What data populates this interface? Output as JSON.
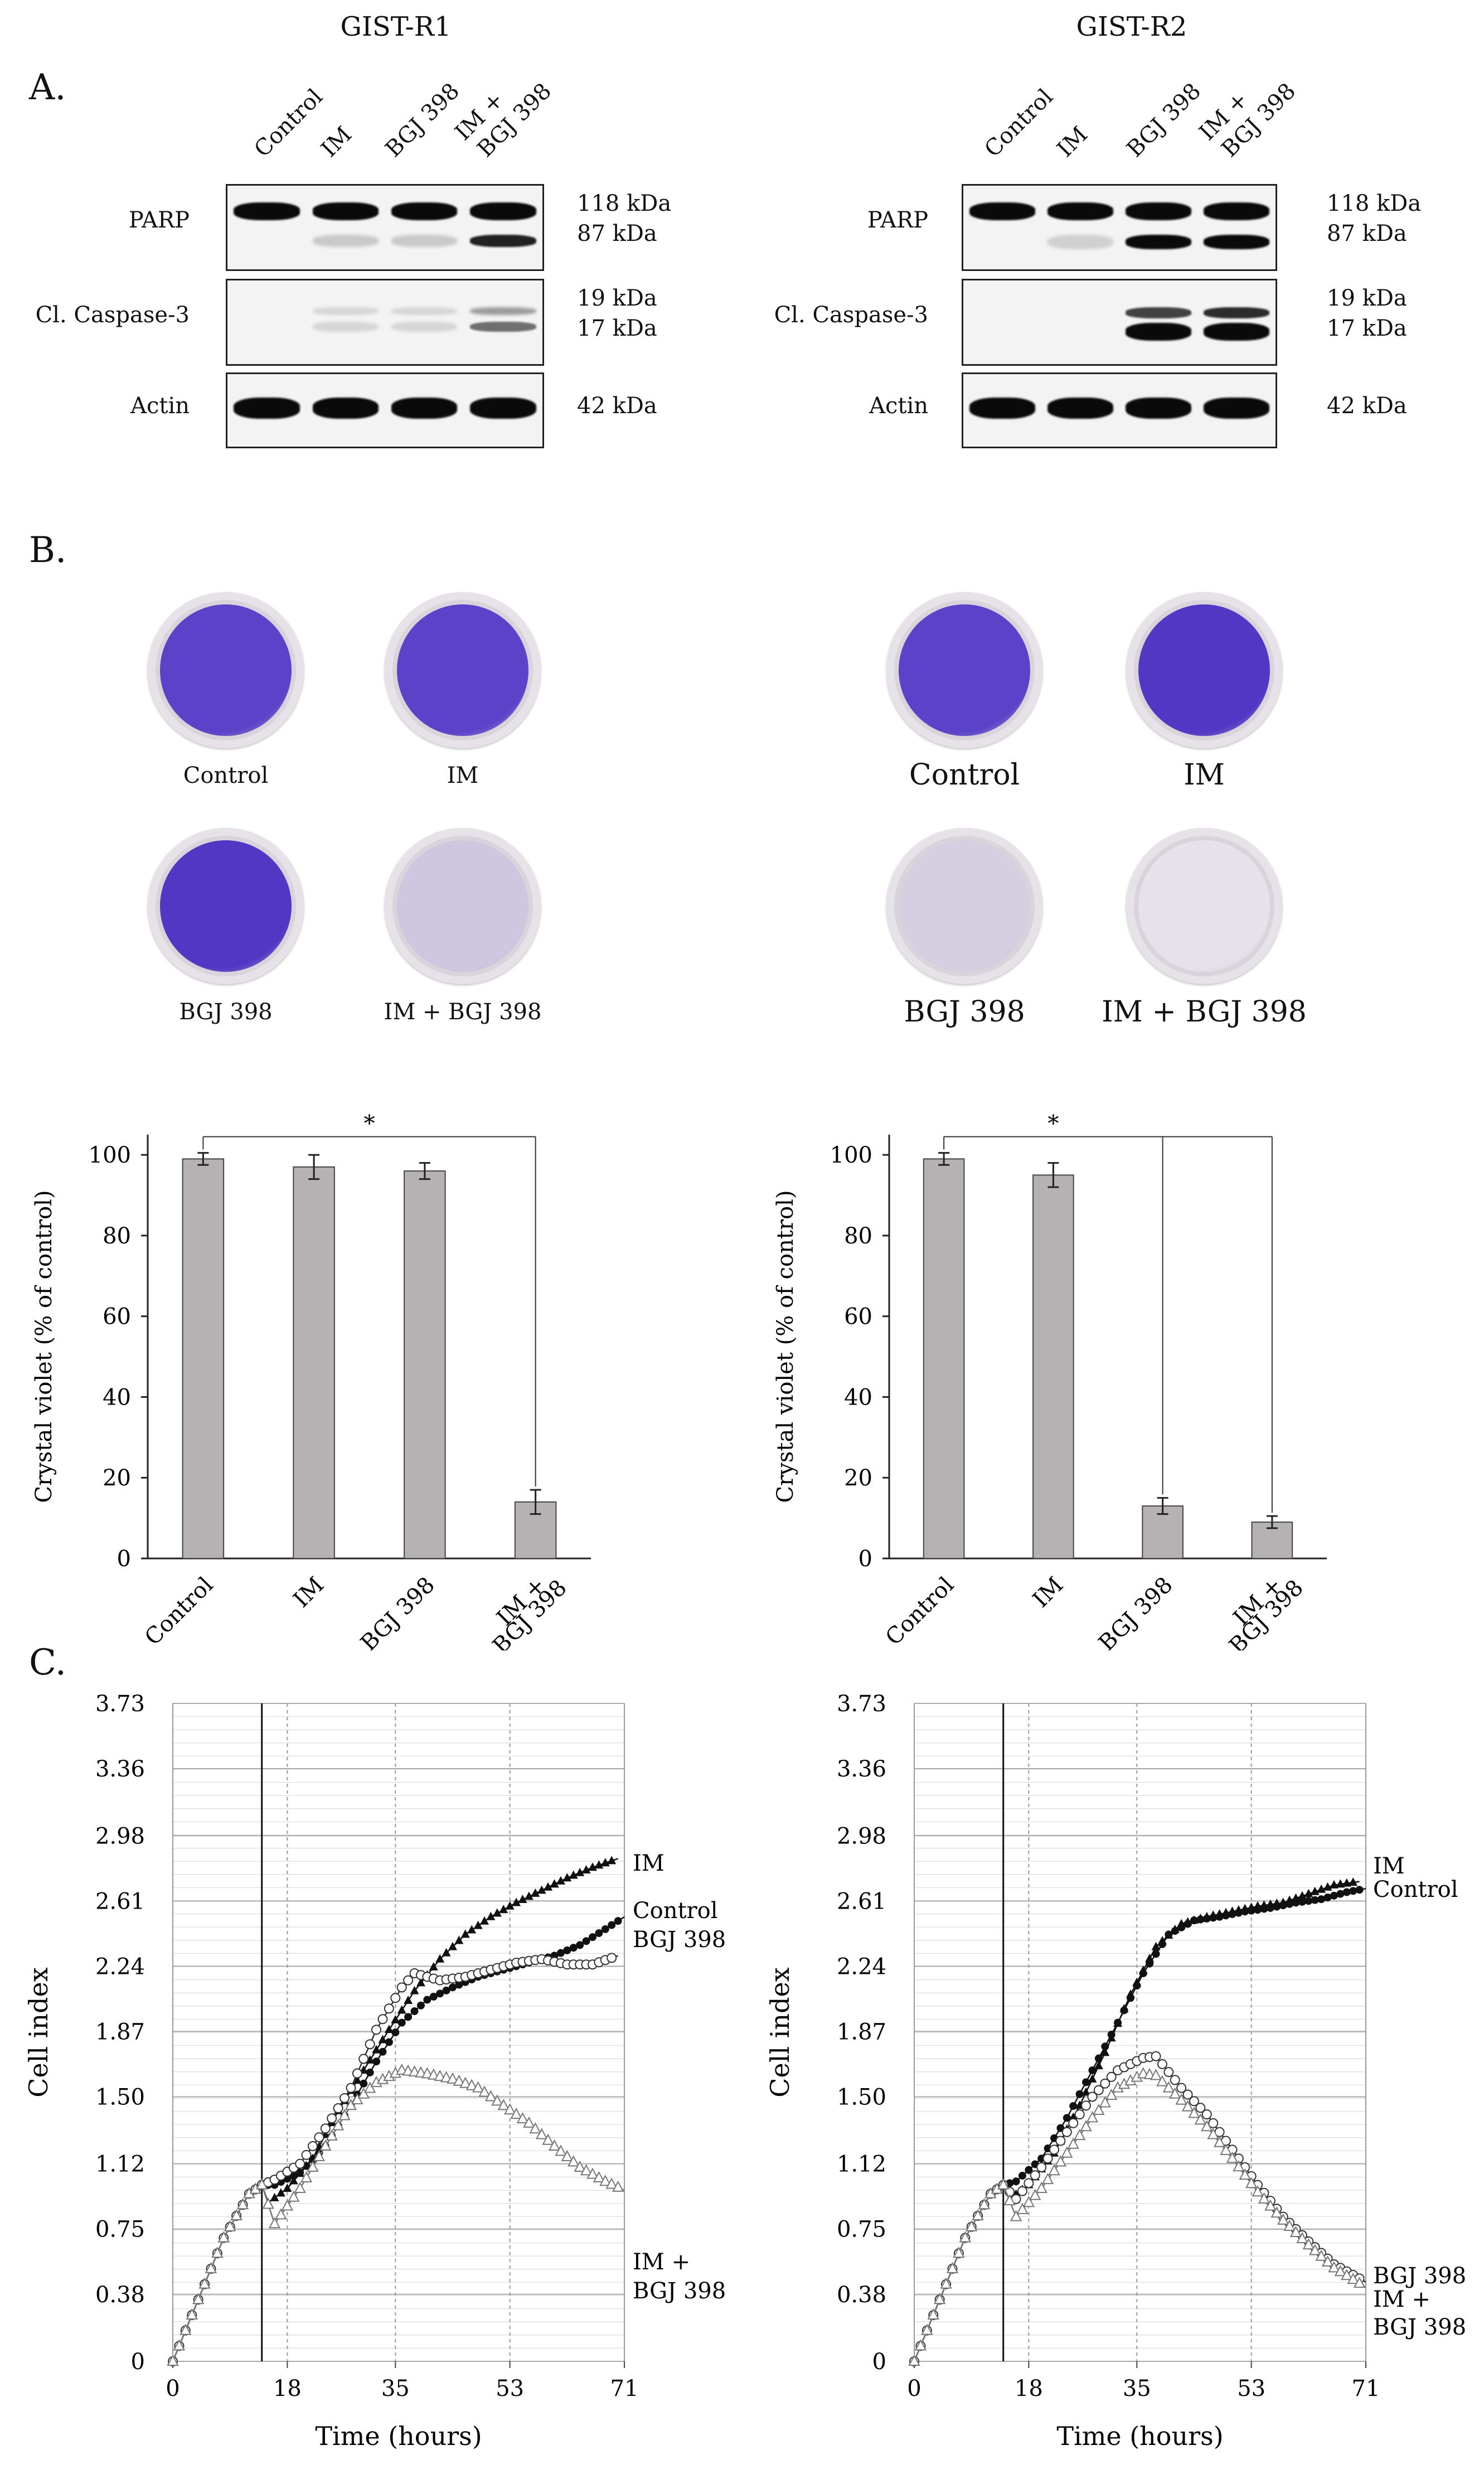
{
  "panelA": {
    "letter": "A.",
    "columns": [
      {
        "title": "GIST-R1",
        "lanes": [
          "Control",
          "IM",
          "BGJ 398",
          "IM +",
          "BGJ 398"
        ],
        "rows": [
          {
            "label": "PARP",
            "kda": [
              "118 kDa",
              "87 kDa"
            ]
          },
          {
            "label": "Cl. Caspase-3",
            "kda": [
              "19 kDa",
              "17 kDa"
            ]
          },
          {
            "label": "Actin",
            "kda": [
              "42 kDa"
            ]
          }
        ]
      },
      {
        "title": "GIST-R2",
        "lanes": [
          "Control",
          "IM",
          "BGJ 398",
          "IM +",
          "BGJ 398"
        ],
        "rows": [
          {
            "label": "PARP",
            "kda": [
              "118 kDa",
              "87 kDa"
            ]
          },
          {
            "label": "Cl. Caspase-3",
            "kda": [
              "19 kDa",
              "17 kDa"
            ]
          },
          {
            "label": "Actin",
            "kda": [
              "42 kDa"
            ]
          }
        ]
      }
    ],
    "blot_intensity": {
      "r1": {
        "parp118": [
          1,
          1,
          1,
          1
        ],
        "parp87": [
          0,
          0.15,
          0.15,
          0.9
        ],
        "casp19": [
          0,
          0.1,
          0.1,
          0.35
        ],
        "casp17": [
          0,
          0.1,
          0.1,
          0.55
        ],
        "actin": [
          1,
          1,
          1,
          1
        ]
      },
      "r2": {
        "parp118": [
          1,
          1,
          1,
          1
        ],
        "parp87": [
          0,
          0.12,
          1,
          1
        ],
        "casp19": [
          0,
          0,
          0.75,
          0.85
        ],
        "casp17": [
          0,
          0,
          1,
          1
        ],
        "actin": [
          1,
          1,
          1,
          1
        ]
      }
    }
  },
  "panelB": {
    "letter": "B.",
    "dishes": {
      "r1": [
        "Control",
        "IM",
        "BGJ 398",
        "IM + BGJ 398"
      ],
      "r2": [
        "Control",
        "IM",
        "BGJ 398",
        "IM + BGJ 398"
      ]
    },
    "stain_colors": {
      "r1": [
        "#5a43c8",
        "#5a43c8",
        "#5237c4",
        "#cfc6e0"
      ],
      "r2": [
        "#5a43c8",
        "#5237c4",
        "#d6cfe2",
        "#e6e2ea"
      ]
    },
    "significance_label": "*"
  },
  "chart_data": [
    {
      "type": "bar",
      "title": "",
      "ylabel": "Crystal violet (% of control)",
      "xlabel": "",
      "categories": [
        "Control",
        "IM",
        "BGJ 398",
        "IM + BGJ 398"
      ],
      "category_lines": [
        [
          "Control"
        ],
        [
          "IM"
        ],
        [
          "BGJ 398"
        ],
        [
          "IM +",
          "BGJ 398"
        ]
      ],
      "values": [
        99,
        97,
        96,
        14
      ],
      "errors": [
        1.5,
        3,
        2,
        3
      ],
      "yticks": [
        0,
        20,
        40,
        60,
        80,
        100
      ],
      "ylim": [
        0,
        105
      ],
      "bar_color": "#b6b1b3",
      "significance": {
        "label": "*",
        "from": 0,
        "to": [
          3
        ]
      }
    },
    {
      "type": "bar",
      "title": "",
      "ylabel": "Crystal violet (% of control)",
      "xlabel": "",
      "categories": [
        "Control",
        "IM",
        "BGJ 398",
        "IM + BGJ 398"
      ],
      "category_lines": [
        [
          "Control"
        ],
        [
          "IM"
        ],
        [
          "BGJ 398"
        ],
        [
          "IM +",
          "BGJ 398"
        ]
      ],
      "values": [
        99,
        95,
        13,
        9
      ],
      "errors": [
        1.5,
        3,
        2,
        1.5
      ],
      "yticks": [
        0,
        20,
        40,
        60,
        80,
        100
      ],
      "ylim": [
        0,
        105
      ],
      "bar_color": "#b6b1b3",
      "significance": {
        "label": "*",
        "from": 0,
        "to": [
          2,
          3
        ]
      }
    },
    {
      "type": "line",
      "title": "",
      "panel_letter": "C.",
      "xlabel": "Time (hours)",
      "ylabel": "Cell index",
      "xticks": [
        0,
        18,
        35,
        53,
        71
      ],
      "yticks": [
        0,
        0.38,
        0.75,
        1.12,
        1.5,
        1.87,
        2.24,
        2.61,
        2.98,
        3.36,
        3.73
      ],
      "ytick_labels": [
        "0",
        "0.38",
        "0.75",
        "1.12",
        "1.50",
        "1.87",
        "2.24",
        "2.61",
        "2.98",
        "3.36",
        "3.73"
      ],
      "xlim": [
        0,
        71
      ],
      "ylim": [
        0,
        3.73
      ],
      "treatment_time": 14,
      "series": [
        {
          "name": "IM",
          "marker": "filled-triangle",
          "points": [
            [
              0,
              0
            ],
            [
              4,
              0.35
            ],
            [
              8,
              0.7
            ],
            [
              12,
              0.95
            ],
            [
              14,
              1.0
            ],
            [
              15,
              0.9
            ],
            [
              18,
              0.98
            ],
            [
              22,
              1.15
            ],
            [
              26,
              1.42
            ],
            [
              30,
              1.65
            ],
            [
              34,
              1.88
            ],
            [
              38,
              2.1
            ],
            [
              42,
              2.28
            ],
            [
              46,
              2.42
            ],
            [
              50,
              2.52
            ],
            [
              54,
              2.6
            ],
            [
              58,
              2.67
            ],
            [
              62,
              2.74
            ],
            [
              66,
              2.8
            ],
            [
              70,
              2.85
            ]
          ]
        },
        {
          "name": "Control",
          "marker": "filled-circle",
          "points": [
            [
              0,
              0
            ],
            [
              4,
              0.35
            ],
            [
              8,
              0.7
            ],
            [
              12,
              0.95
            ],
            [
              14,
              1.0
            ],
            [
              16,
              1.0
            ],
            [
              20,
              1.07
            ],
            [
              24,
              1.22
            ],
            [
              28,
              1.45
            ],
            [
              32,
              1.7
            ],
            [
              36,
              1.92
            ],
            [
              40,
              2.05
            ],
            [
              44,
              2.12
            ],
            [
              48,
              2.18
            ],
            [
              52,
              2.22
            ],
            [
              56,
              2.26
            ],
            [
              60,
              2.3
            ],
            [
              64,
              2.36
            ],
            [
              68,
              2.45
            ],
            [
              71,
              2.52
            ]
          ]
        },
        {
          "name": "BGJ 398",
          "marker": "open-circle",
          "points": [
            [
              0,
              0
            ],
            [
              4,
              0.35
            ],
            [
              8,
              0.7
            ],
            [
              12,
              0.95
            ],
            [
              14,
              1.0
            ],
            [
              16,
              1.03
            ],
            [
              20,
              1.12
            ],
            [
              24,
              1.32
            ],
            [
              28,
              1.55
            ],
            [
              32,
              1.88
            ],
            [
              36,
              2.12
            ],
            [
              38,
              2.2
            ],
            [
              42,
              2.16
            ],
            [
              46,
              2.18
            ],
            [
              50,
              2.22
            ],
            [
              54,
              2.26
            ],
            [
              58,
              2.28
            ],
            [
              62,
              2.25
            ],
            [
              66,
              2.25
            ],
            [
              70,
              2.3
            ]
          ]
        },
        {
          "name": "IM + BGJ 398",
          "marker": "open-triangle",
          "points": [
            [
              0,
              0
            ],
            [
              4,
              0.35
            ],
            [
              8,
              0.7
            ],
            [
              12,
              0.95
            ],
            [
              14,
              1.0
            ],
            [
              16,
              0.78
            ],
            [
              20,
              0.98
            ],
            [
              24,
              1.22
            ],
            [
              28,
              1.45
            ],
            [
              32,
              1.58
            ],
            [
              36,
              1.65
            ],
            [
              40,
              1.63
            ],
            [
              44,
              1.6
            ],
            [
              48,
              1.55
            ],
            [
              52,
              1.45
            ],
            [
              56,
              1.35
            ],
            [
              60,
              1.22
            ],
            [
              64,
              1.1
            ],
            [
              68,
              1.02
            ],
            [
              71,
              0.97
            ]
          ]
        }
      ],
      "legend": [
        "IM",
        "Control",
        "BGJ 398",
        "IM +",
        "BGJ 398"
      ]
    },
    {
      "type": "line",
      "title": "",
      "xlabel": "Time (hours)",
      "ylabel": "Cell index",
      "xticks": [
        0,
        18,
        35,
        53,
        71
      ],
      "yticks": [
        0,
        0.38,
        0.75,
        1.12,
        1.5,
        1.87,
        2.24,
        2.61,
        2.98,
        3.36,
        3.73
      ],
      "ytick_labels": [
        "0",
        "0.38",
        "0.75",
        "1.12",
        "1.50",
        "1.87",
        "2.24",
        "2.61",
        "2.98",
        "3.36",
        "3.73"
      ],
      "xlim": [
        0,
        71
      ],
      "ylim": [
        0,
        3.73
      ],
      "treatment_time": 14,
      "series": [
        {
          "name": "IM",
          "marker": "filled-triangle",
          "points": [
            [
              0,
              0
            ],
            [
              4,
              0.35
            ],
            [
              8,
              0.7
            ],
            [
              12,
              0.95
            ],
            [
              14,
              1.0
            ],
            [
              15,
              0.92
            ],
            [
              18,
              1.0
            ],
            [
              22,
              1.18
            ],
            [
              26,
              1.45
            ],
            [
              30,
              1.75
            ],
            [
              34,
              2.08
            ],
            [
              38,
              2.35
            ],
            [
              42,
              2.48
            ],
            [
              46,
              2.52
            ],
            [
              50,
              2.55
            ],
            [
              54,
              2.58
            ],
            [
              58,
              2.6
            ],
            [
              62,
              2.65
            ],
            [
              66,
              2.7
            ],
            [
              70,
              2.72
            ]
          ]
        },
        {
          "name": "Control",
          "marker": "filled-circle",
          "points": [
            [
              0,
              0
            ],
            [
              4,
              0.35
            ],
            [
              8,
              0.7
            ],
            [
              12,
              0.95
            ],
            [
              14,
              1.0
            ],
            [
              16,
              1.02
            ],
            [
              20,
              1.15
            ],
            [
              24,
              1.38
            ],
            [
              28,
              1.65
            ],
            [
              32,
              1.92
            ],
            [
              36,
              2.2
            ],
            [
              40,
              2.42
            ],
            [
              44,
              2.5
            ],
            [
              48,
              2.52
            ],
            [
              52,
              2.55
            ],
            [
              56,
              2.57
            ],
            [
              60,
              2.6
            ],
            [
              64,
              2.62
            ],
            [
              68,
              2.66
            ],
            [
              71,
              2.68
            ]
          ]
        },
        {
          "name": "BGJ 398",
          "marker": "open-circle",
          "points": [
            [
              0,
              0
            ],
            [
              4,
              0.35
            ],
            [
              8,
              0.7
            ],
            [
              12,
              0.95
            ],
            [
              14,
              1.0
            ],
            [
              16,
              0.92
            ],
            [
              20,
              1.1
            ],
            [
              24,
              1.3
            ],
            [
              28,
              1.5
            ],
            [
              32,
              1.65
            ],
            [
              36,
              1.72
            ],
            [
              38,
              1.73
            ],
            [
              42,
              1.55
            ],
            [
              46,
              1.4
            ],
            [
              50,
              1.2
            ],
            [
              54,
              1.0
            ],
            [
              58,
              0.82
            ],
            [
              62,
              0.68
            ],
            [
              66,
              0.55
            ],
            [
              71,
              0.45
            ]
          ]
        },
        {
          "name": "IM + BGJ 398",
          "marker": "open-triangle",
          "points": [
            [
              0,
              0
            ],
            [
              4,
              0.35
            ],
            [
              8,
              0.7
            ],
            [
              12,
              0.95
            ],
            [
              14,
              1.0
            ],
            [
              16,
              0.82
            ],
            [
              20,
              0.98
            ],
            [
              24,
              1.18
            ],
            [
              28,
              1.38
            ],
            [
              32,
              1.55
            ],
            [
              36,
              1.63
            ],
            [
              38,
              1.62
            ],
            [
              42,
              1.48
            ],
            [
              46,
              1.33
            ],
            [
              50,
              1.15
            ],
            [
              54,
              0.96
            ],
            [
              58,
              0.8
            ],
            [
              62,
              0.66
            ],
            [
              66,
              0.53
            ],
            [
              71,
              0.42
            ]
          ]
        }
      ],
      "legend": [
        "IM",
        "Control",
        "BGJ 398",
        "IM +",
        "BGJ 398"
      ]
    }
  ]
}
